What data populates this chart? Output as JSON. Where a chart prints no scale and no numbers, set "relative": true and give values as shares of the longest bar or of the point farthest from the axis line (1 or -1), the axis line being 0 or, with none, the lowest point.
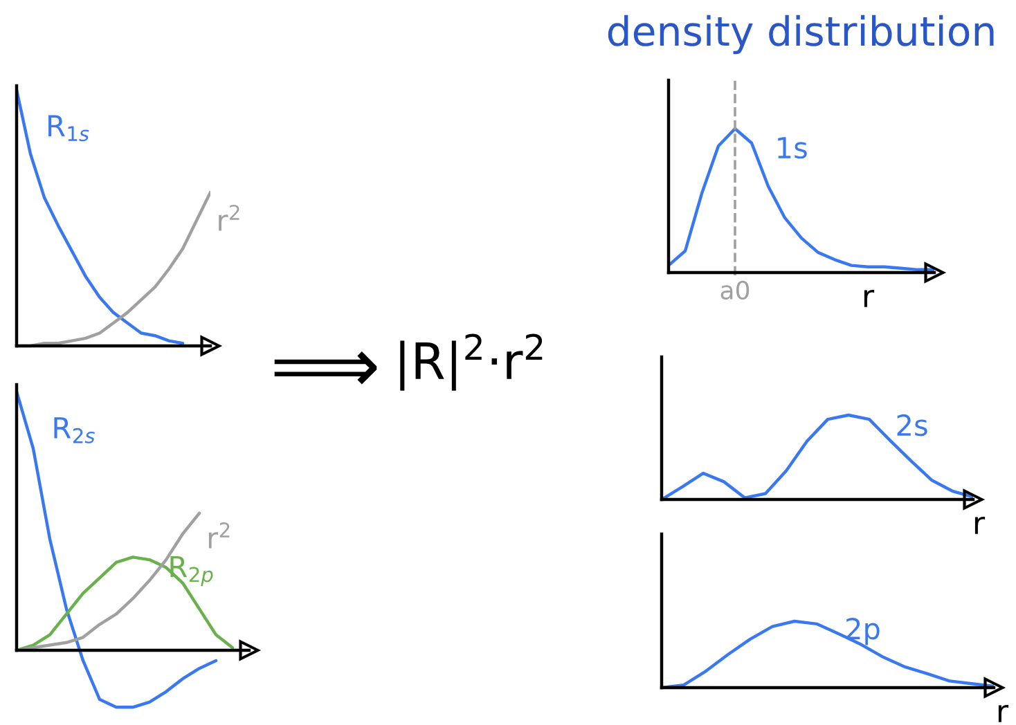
{
  "chart_data": [
    {
      "type": "line",
      "relative": true,
      "legend": false,
      "marker": "none",
      "line_style": "solid",
      "categories": [
        null,
        null,
        null,
        null,
        null,
        null,
        null,
        null,
        null,
        null,
        null,
        null,
        null,
        null,
        null
      ],
      "series": [
        {
          "name": "R$_{1s}$",
          "color": "#3a78f0",
          "values": [
            1.0,
            0.75,
            0.58,
            0.47,
            0.37,
            0.27,
            0.19,
            0.13,
            0.09,
            0.05,
            0.04,
            0.02,
            0.01,
            null,
            null
          ]
        },
        {
          "name": "r$^{2}$",
          "color": "#a0a0a0",
          "values": [
            0,
            0,
            0.01,
            0.01,
            0.02,
            0.03,
            0.05,
            0.09,
            0.13,
            0.18,
            0.23,
            0.3,
            0.38,
            0.49,
            0.6
          ]
        }
      ]
    },
    {
      "type": "line",
      "relative": true,
      "legend": false,
      "marker": "none",
      "line_style": "solid",
      "categories": [
        null,
        null,
        null,
        null,
        null,
        null,
        null,
        null,
        null,
        null,
        null,
        null,
        null,
        null,
        null
      ],
      "series": [
        {
          "name": "R$_{2s}$",
          "color": "#3a78f0",
          "values": [
            1.0,
            0.78,
            0.43,
            0.16,
            -0.04,
            -0.19,
            -0.22,
            -0.22,
            -0.2,
            -0.16,
            -0.11,
            -0.07,
            -0.04,
            null,
            null
          ]
        },
        {
          "name": "R$_{2p}$",
          "color": "#6ab04c",
          "values": [
            0,
            0.02,
            0.06,
            0.14,
            0.22,
            0.28,
            0.34,
            0.36,
            0.35,
            0.32,
            0.26,
            0.16,
            0.06,
            0.01,
            null
          ]
        },
        {
          "name": "r$^{2}$",
          "color": "#a0a0a0",
          "values": [
            0,
            0.01,
            0.02,
            0.03,
            0.05,
            0.1,
            0.14,
            0.2,
            0.27,
            0.35,
            0.45,
            0.53,
            null,
            null,
            null
          ]
        }
      ]
    },
    {
      "type": "line",
      "relative": true,
      "legend": false,
      "marker": "none",
      "line_style": "solid",
      "title": "density distribution",
      "xlabel": "r",
      "categories": [
        null,
        null,
        null,
        null,
        null,
        null,
        null,
        null,
        null,
        null,
        null,
        null,
        null,
        null,
        null,
        null,
        null
      ],
      "ref_lines": [
        {
          "axis": "x",
          "label": "a0",
          "color": "#a0a0a0",
          "line_style": "dashed"
        }
      ],
      "series": [
        {
          "name": "1s",
          "color": "#3a78f0",
          "values": [
            0.05,
            0.15,
            0.55,
            0.88,
            1.0,
            0.9,
            0.6,
            0.38,
            0.24,
            0.14,
            0.09,
            0.05,
            0.04,
            0.04,
            0.03,
            0.02,
            0.02
          ]
        }
      ]
    },
    {
      "type": "line",
      "relative": true,
      "legend": false,
      "marker": "none",
      "line_style": "solid",
      "xlabel": "r",
      "categories": [
        null,
        null,
        null,
        null,
        null,
        null,
        null,
        null,
        null,
        null,
        null,
        null,
        null,
        null,
        null,
        null
      ],
      "series": [
        {
          "name": "2s",
          "color": "#3a78f0",
          "values": [
            0,
            0.15,
            0.31,
            0.21,
            0.02,
            0.07,
            0.34,
            0.69,
            0.95,
            1.0,
            0.95,
            0.7,
            0.46,
            0.23,
            0.1,
            0.03
          ]
        }
      ]
    },
    {
      "type": "line",
      "relative": true,
      "legend": false,
      "marker": "none",
      "line_style": "solid",
      "xlabel": "r",
      "categories": [
        null,
        null,
        null,
        null,
        null,
        null,
        null,
        null,
        null,
        null,
        null,
        null,
        null,
        null,
        null,
        null
      ],
      "series": [
        {
          "name": "2p",
          "color": "#3a78f0",
          "values": [
            0,
            0.04,
            0.25,
            0.5,
            0.73,
            0.92,
            1.0,
            0.96,
            0.81,
            0.65,
            0.46,
            0.31,
            0.21,
            0.1,
            0.06,
            0.02
          ]
        }
      ]
    },
    {
      "type": "other",
      "annotations": [
        "⟹",
        "|R|$^{2}$·r$^{2}$"
      ]
    }
  ]
}
